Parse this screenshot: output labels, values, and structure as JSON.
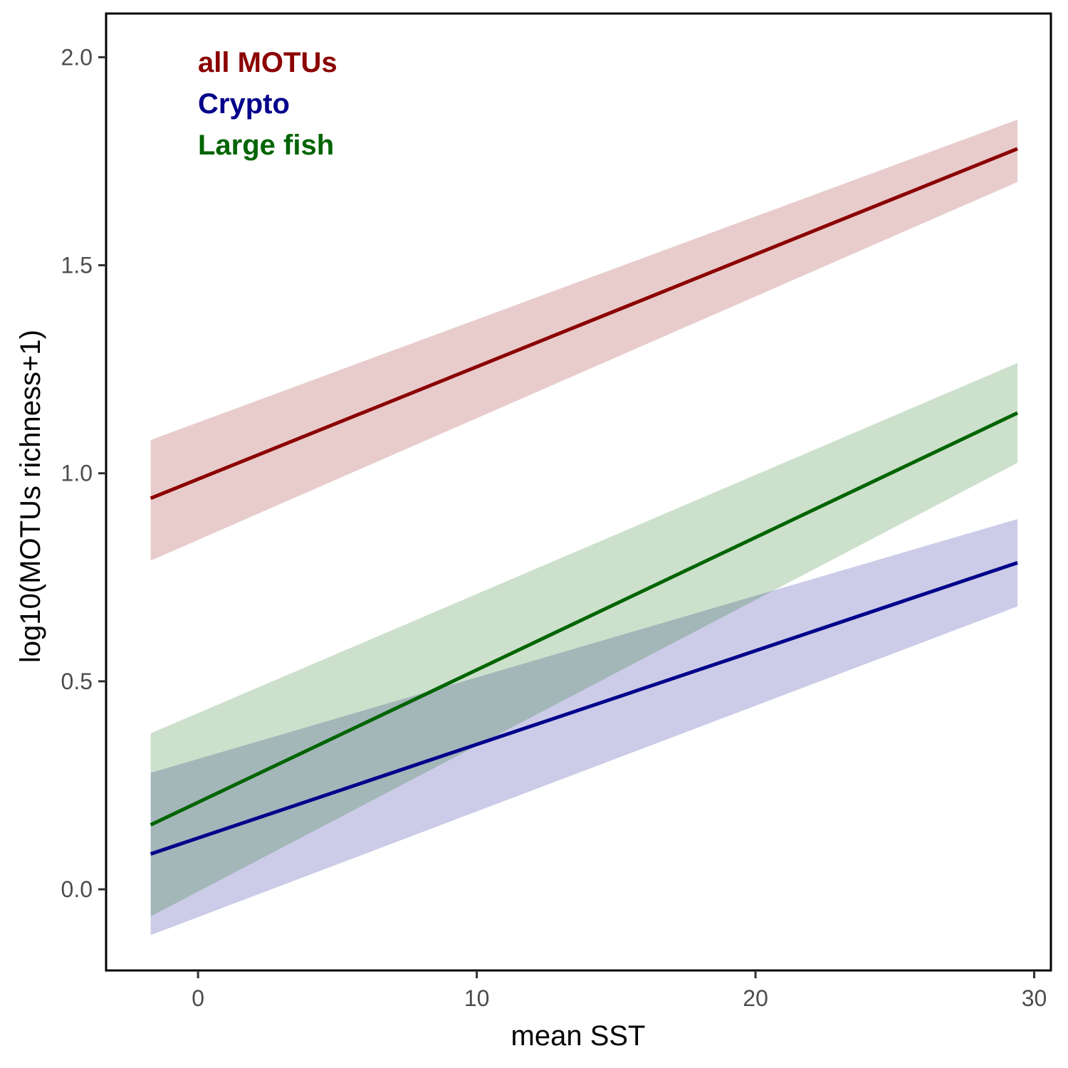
{
  "chart_data": {
    "type": "line",
    "title": "",
    "xlabel": "mean SST",
    "ylabel": "log10(MOTUs richness+1)",
    "xlim": [
      -3.3,
      30.6
    ],
    "ylim": [
      -0.195,
      2.105
    ],
    "x_ticks": [
      0,
      10,
      20,
      30
    ],
    "x_tick_labels": [
      "0",
      "10",
      "20",
      "30"
    ],
    "y_ticks": [
      0.0,
      0.5,
      1.0,
      1.5,
      2.0
    ],
    "y_tick_labels": [
      "0.0",
      "0.5",
      "1.0",
      "1.5",
      "2.0"
    ],
    "grid": false,
    "legend_position": "top-left",
    "series": [
      {
        "name": "all MOTUs",
        "color": "#8B0000",
        "x": [
          -1.7,
          29.4
        ],
        "fit": [
          0.94,
          1.78
        ],
        "ci_lower": [
          0.79,
          1.7
        ],
        "ci_upper": [
          1.08,
          1.85
        ]
      },
      {
        "name": "Crypto",
        "color": "#00008B",
        "x": [
          -1.7,
          29.4
        ],
        "fit": [
          0.085,
          0.785
        ],
        "ci_lower": [
          -0.11,
          0.68
        ],
        "ci_upper": [
          0.28,
          0.89
        ]
      },
      {
        "name": "Large fish",
        "color": "#006400",
        "x": [
          -1.7,
          29.4
        ],
        "fit": [
          0.155,
          1.145
        ],
        "ci_lower": [
          -0.065,
          1.025
        ],
        "ci_upper": [
          0.375,
          1.265
        ]
      }
    ]
  }
}
